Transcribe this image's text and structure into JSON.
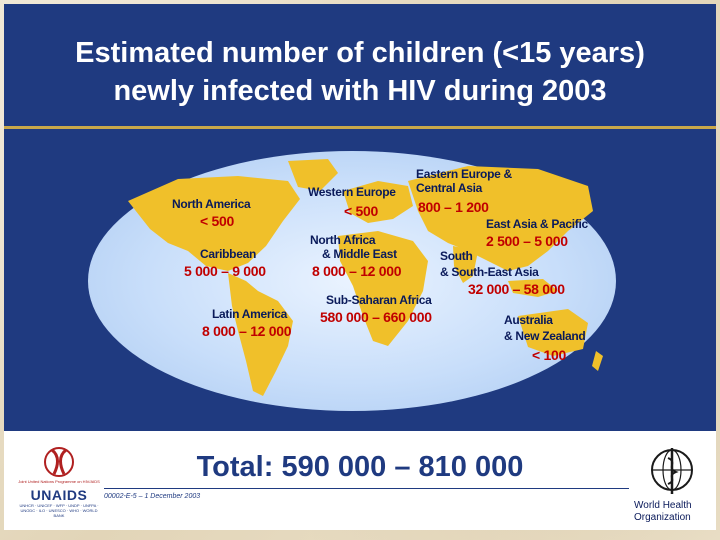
{
  "slide": {
    "title": {
      "line1": "Estimated number of children (<15 years)",
      "line2": "newly infected with HIV during 2003"
    },
    "regions": [
      {
        "name": "North America",
        "value": "< 500"
      },
      {
        "name": "Caribbean",
        "value": "5 000 – 9 000"
      },
      {
        "name": "Latin America",
        "value": "8 000 – 12 000"
      },
      {
        "name": "Western Europe",
        "value": "< 500"
      },
      {
        "name_line1": "North Africa",
        "name_line2": "& Middle East",
        "value": "8 000 – 12 000"
      },
      {
        "name": "Sub-Saharan Africa",
        "value": "580 000 – 660 000"
      },
      {
        "name_line1": "Eastern Europe &",
        "name_line2": "Central Asia",
        "value": "800 – 1 200"
      },
      {
        "name": "East Asia & Pacific",
        "value": "2 500 – 5 000"
      },
      {
        "name_line1": "South",
        "name_line2": "& South-East Asia",
        "value": "32 000 – 58 000"
      },
      {
        "name_line1": "Australia",
        "name_line2": "& New Zealand",
        "value": "< 100"
      }
    ],
    "total": "Total: 590 000 – 810 000",
    "code": "00002-E-5 – 1 December 2003"
  },
  "logos": {
    "unaids": {
      "top": "Joint United Nations Programme on HIV/AIDS",
      "name": "UNAIDS",
      "sub": "UNHCR · UNICEF · WFP · UNDP · UNFPA · UNODC · ILO · UNESCO · WHO · WORLD BANK"
    },
    "who": {
      "line1": "World Health",
      "line2": "Organization"
    }
  },
  "colors": {
    "band": "#1f3a80",
    "land": "#f0c02a",
    "ocean": "#c8defa",
    "value_red": "#c00000",
    "gold_rule": "#c9a84a"
  }
}
